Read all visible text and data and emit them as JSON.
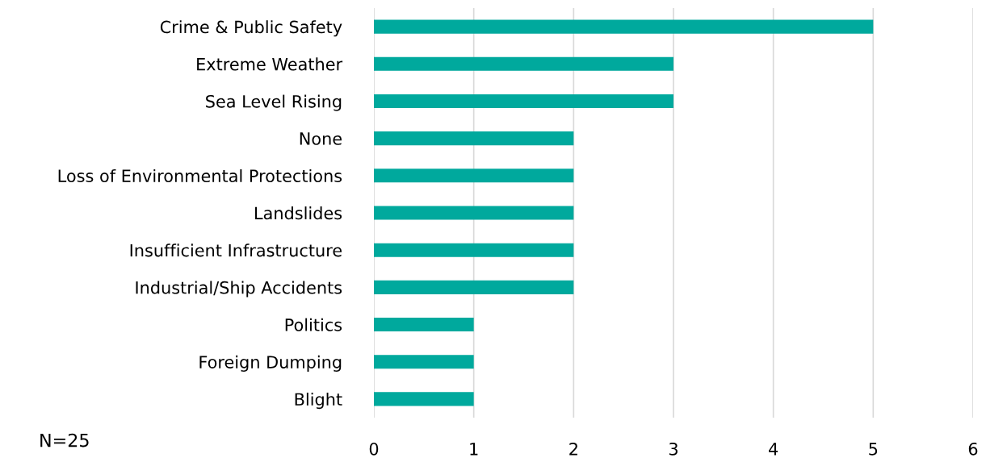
{
  "chart_data": {
    "type": "bar",
    "orientation": "horizontal",
    "categories": [
      "Crime & Public Safety",
      "Extreme Weather",
      "Sea Level Rising",
      "None",
      "Loss of Environmental Protections",
      "Landslides",
      "Insufficient Infrastructure",
      "Industrial/Ship Accidents",
      "Politics",
      "Foreign Dumping",
      "Blight"
    ],
    "values": [
      5,
      3,
      3,
      2,
      2,
      2,
      2,
      2,
      1,
      1,
      1
    ],
    "color": "#00a99d",
    "xlim": [
      0,
      6
    ],
    "xticks": [
      0,
      1,
      2,
      3,
      4,
      5,
      6
    ],
    "grid": "x",
    "annotations": [
      "N=25"
    ]
  }
}
